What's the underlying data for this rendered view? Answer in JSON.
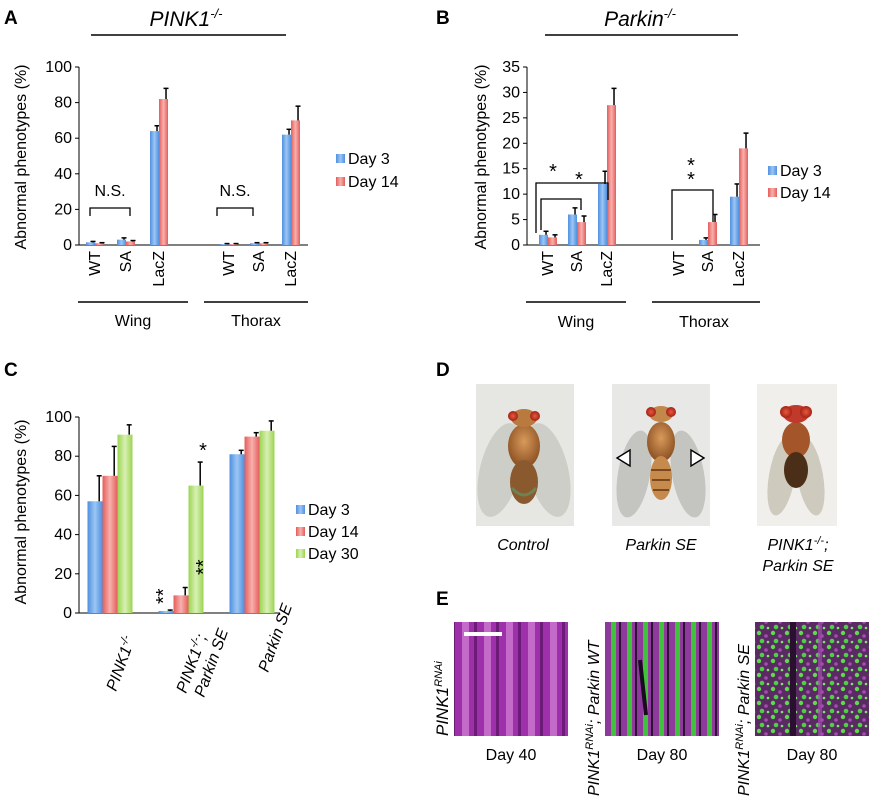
{
  "panels": {
    "A": {
      "letter": "A",
      "title_main": "PINK1",
      "title_sup": "-/-"
    },
    "B": {
      "letter": "B",
      "title_main": "Parkin",
      "title_sup": "-/-"
    },
    "C": {
      "letter": "C"
    },
    "D": {
      "letter": "D",
      "captions": [
        {
          "line1": "Control",
          "line2": ""
        },
        {
          "line1": "Parkin SE",
          "line2": ""
        },
        {
          "line1": "PINK1",
          "sup": "-/-",
          "line1_tail": ";",
          "line2": "Parkin SE"
        }
      ]
    },
    "E": {
      "letter": "E",
      "row_labels": [
        {
          "main": "PINK1",
          "sup": "RNAi",
          "tail": ""
        },
        {
          "main": "PINK1",
          "sup": "RNAi",
          "tail": "; Parkin WT"
        },
        {
          "main": "PINK1",
          "sup": "RNAi",
          "tail": "; Parkin SE"
        }
      ],
      "day_labels": [
        "Day 40",
        "Day 80",
        "Day 80"
      ]
    }
  },
  "colors": {
    "day3": "#6aa6e8",
    "day14": "#ee7b78",
    "day30": "#b8e27a",
    "muscle": "#c63fcf",
    "gfp": "#58d84a"
  },
  "chart_data": [
    {
      "id": "A",
      "type": "bar",
      "ylabel": "Abnormal phenotypes (%)",
      "ylim": [
        0,
        100
      ],
      "yticks": [
        0,
        20,
        40,
        60,
        80,
        100
      ],
      "categories": [
        "WT",
        "SA",
        "LacZ",
        "WT",
        "SA",
        "LacZ"
      ],
      "groups": [
        "Wing",
        "Thorax"
      ],
      "series": [
        {
          "name": "Day 3",
          "values": [
            1.5,
            3,
            64,
            0.5,
            1,
            62
          ],
          "errors": [
            0.5,
            1,
            3,
            0.3,
            0.3,
            3
          ]
        },
        {
          "name": "Day 14",
          "values": [
            1,
            2,
            82,
            0.5,
            1,
            70
          ],
          "errors": [
            0.3,
            0.5,
            6,
            0.3,
            0.3,
            8
          ]
        }
      ],
      "annotations": [
        "N.S.",
        "N.S."
      ],
      "legend": "right"
    },
    {
      "id": "B",
      "type": "bar",
      "ylabel": "Abnormal phenotypes (%)",
      "ylim": [
        0,
        35
      ],
      "yticks": [
        0,
        5,
        10,
        15,
        20,
        25,
        30,
        35
      ],
      "categories": [
        "WT",
        "SA",
        "LacZ",
        "WT",
        "SA",
        "LacZ"
      ],
      "groups": [
        "Wing",
        "Thorax"
      ],
      "series": [
        {
          "name": "Day 3",
          "values": [
            2,
            6,
            12,
            0,
            1,
            9.5
          ],
          "errors": [
            0.7,
            1.3,
            2.5,
            0,
            0.4,
            2.5
          ]
        },
        {
          "name": "Day 14",
          "values": [
            1.5,
            4.5,
            27.5,
            0,
            4.5,
            19
          ],
          "errors": [
            0.5,
            1.2,
            3.3,
            0,
            1.5,
            3
          ]
        }
      ],
      "annotations": [
        "*",
        "*",
        "*",
        "*"
      ],
      "legend": "right"
    },
    {
      "id": "C",
      "type": "bar",
      "ylabel": "Abnormal phenotypes (%)",
      "ylim": [
        0,
        100
      ],
      "yticks": [
        0,
        20,
        40,
        60,
        80,
        100
      ],
      "categories": [
        "PINK1 -/-",
        "PINK1 -/- ; Parkin SE",
        "Parkin SE"
      ],
      "category_labels": [
        {
          "main": "PINK1",
          "sup": "-/-",
          "line2": ""
        },
        {
          "main": "PINK1",
          "sup": "-/-",
          "tail": ";",
          "line2": "Parkin SE"
        },
        {
          "main": "Parkin SE",
          "sup": "",
          "line2": ""
        }
      ],
      "series": [
        {
          "name": "Day 3",
          "values": [
            57,
            1,
            81
          ],
          "errors": [
            13,
            0.5,
            2
          ]
        },
        {
          "name": "Day 14",
          "values": [
            70,
            9,
            90
          ],
          "errors": [
            15,
            4,
            2
          ]
        },
        {
          "name": "Day 30",
          "values": [
            91,
            65,
            93
          ],
          "errors": [
            5,
            12,
            5
          ]
        }
      ],
      "annotations": [
        "**",
        "**",
        "*"
      ],
      "legend": "right"
    }
  ]
}
